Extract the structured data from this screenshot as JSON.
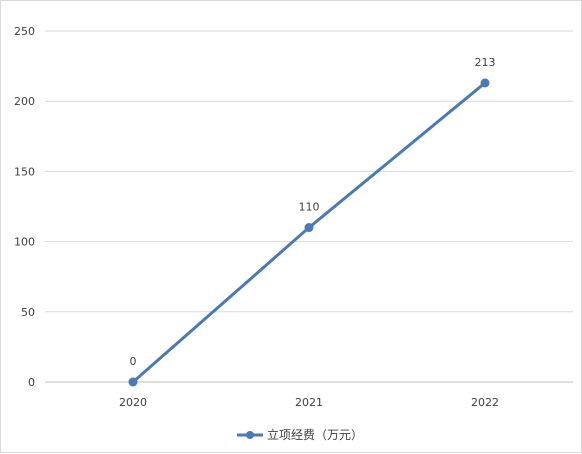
{
  "chart_data": {
    "type": "line",
    "title": "",
    "xlabel": "",
    "ylabel": "",
    "categories": [
      "2020",
      "2021",
      "2022"
    ],
    "series": [
      {
        "name": "立项经费（万元）",
        "values": [
          0,
          110,
          213
        ],
        "color": "#4a7ab5"
      }
    ],
    "data_labels": [
      "0",
      "110",
      "213"
    ],
    "ylim": [
      0,
      250
    ],
    "yticks": [
      0,
      50,
      100,
      150,
      200,
      250
    ],
    "ytick_labels": [
      "0",
      "50",
      "100",
      "150",
      "200",
      "250"
    ],
    "grid": true,
    "legend_position": "bottom"
  }
}
